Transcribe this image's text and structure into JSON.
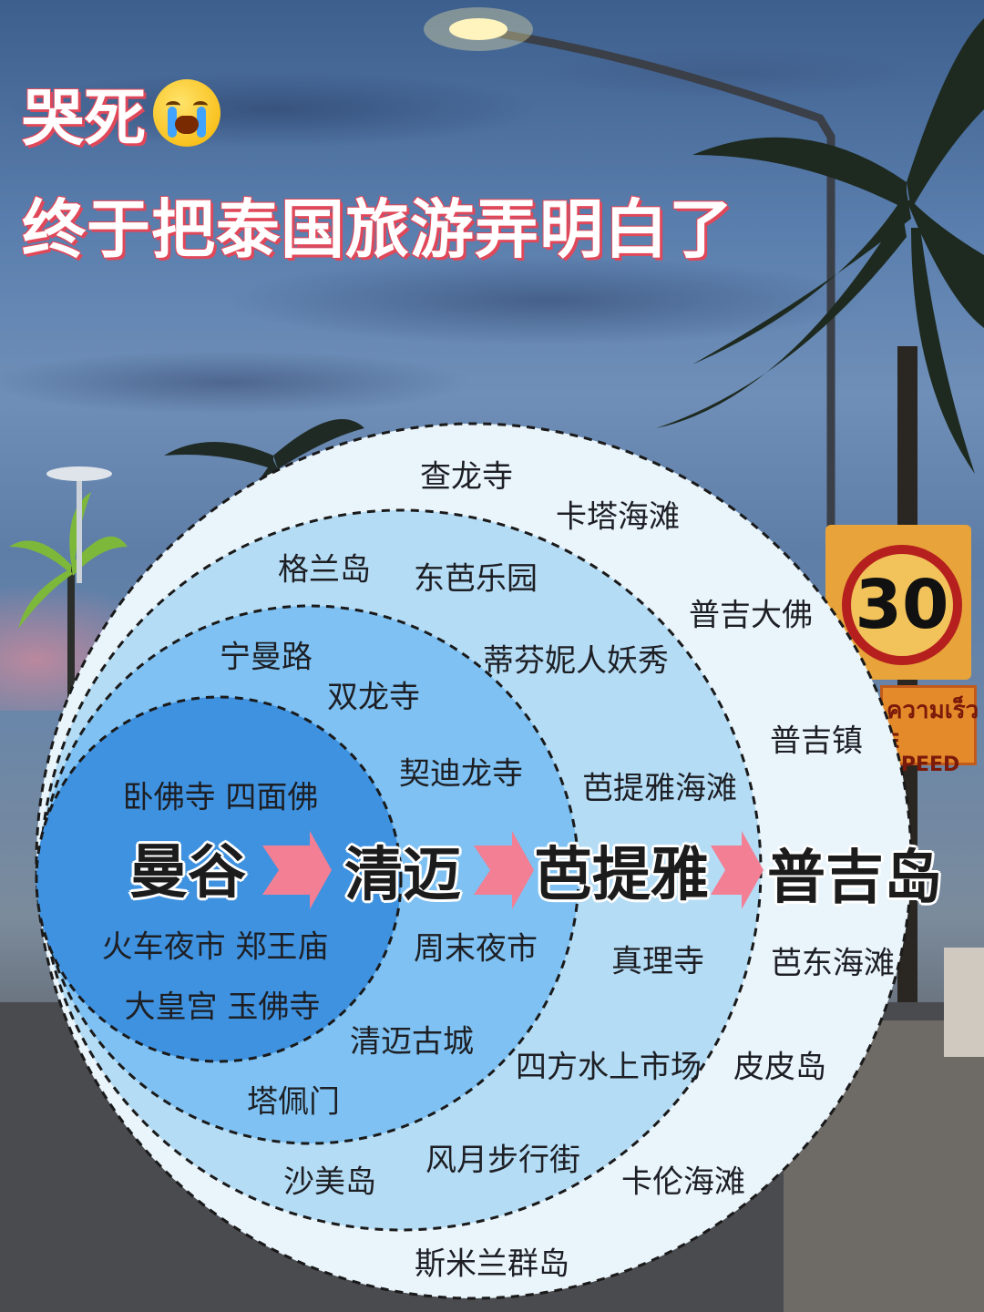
{
  "title": {
    "line1": "哭死",
    "line2": "终于把泰国旅游弄明白了"
  },
  "emoji_icon": "loudly-crying-face",
  "street_sign": {
    "speed": "30",
    "thai_text": "ความเร็ว",
    "speed_label": "E SPEED"
  },
  "diagram": {
    "cities": [
      "曼谷",
      "清迈",
      "芭提雅",
      "普吉岛"
    ],
    "rings": [
      {
        "name": "曼谷",
        "color": "#3f92e0",
        "spots": [
          "卧佛寺 四面佛",
          "火车夜市 郑王庙",
          "大皇宫 玉佛寺"
        ]
      },
      {
        "name": "清迈",
        "color": "#7ec1f2",
        "spots": [
          "宁曼路",
          "双龙寺",
          "契迪龙寺",
          "周末夜市",
          "清迈古城",
          "塔佩门"
        ]
      },
      {
        "name": "芭提雅",
        "color": "#b5dcf5",
        "spots": [
          "格兰岛",
          "东芭乐园",
          "蒂芬妮人妖秀",
          "芭提雅海滩",
          "真理寺",
          "四方水上市场",
          "风月步行街",
          "沙美岛"
        ]
      },
      {
        "name": "普吉岛",
        "color": "#e9f4fb",
        "spots": [
          "查龙寺",
          "卡塔海滩",
          "普吉大佛",
          "普吉镇",
          "芭东海滩",
          "皮皮岛",
          "卡伦海滩",
          "斯米兰群岛"
        ]
      }
    ],
    "arrow_color": "#f27f94"
  }
}
